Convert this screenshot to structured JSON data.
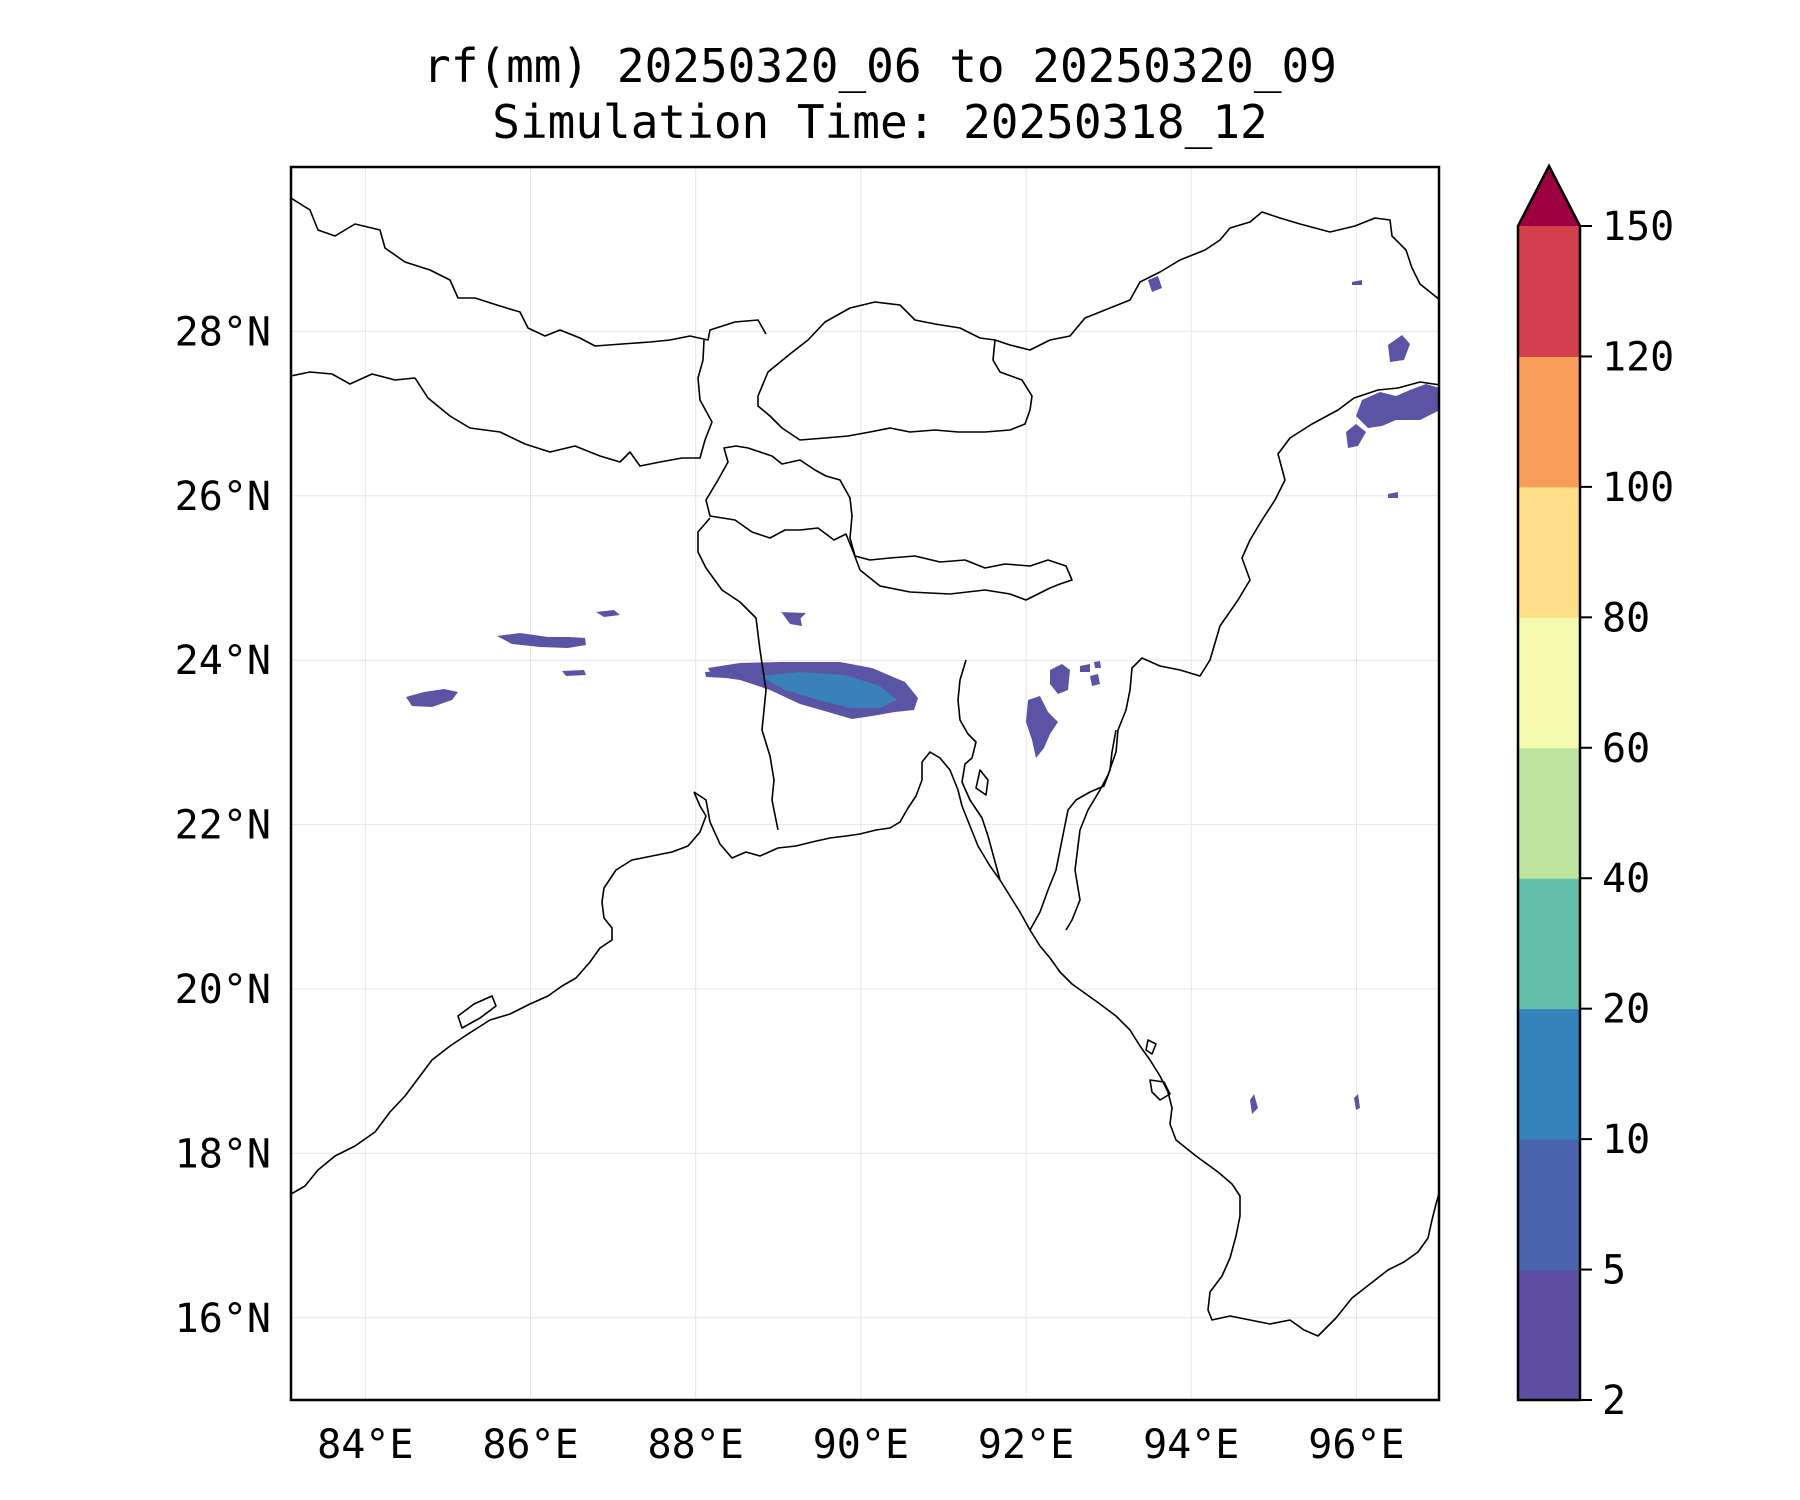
{
  "title": {
    "line1": "rf(mm) 20250320_06 to 20250320_09",
    "line2": "Simulation Time: 20250318_12"
  },
  "map": {
    "lon_range": [
      83.1,
      97.0
    ],
    "lat_range": [
      15.0,
      30.0
    ],
    "lon_ticks": [
      {
        "value": 84,
        "label": "84°E"
      },
      {
        "value": 86,
        "label": "86°E"
      },
      {
        "value": 88,
        "label": "88°E"
      },
      {
        "value": 90,
        "label": "90°E"
      },
      {
        "value": 92,
        "label": "92°E"
      },
      {
        "value": 94,
        "label": "94°E"
      },
      {
        "value": 96,
        "label": "96°E"
      }
    ],
    "lat_ticks": [
      {
        "value": 16,
        "label": "16°N"
      },
      {
        "value": 18,
        "label": "18°N"
      },
      {
        "value": 20,
        "label": "20°N"
      },
      {
        "value": 22,
        "label": "22°N"
      },
      {
        "value": 24,
        "label": "24°N"
      },
      {
        "value": 26,
        "label": "26°N"
      },
      {
        "value": 28,
        "label": "28°N"
      }
    ]
  },
  "colorbar": {
    "levels": [
      "2",
      "5",
      "10",
      "20",
      "40",
      "60",
      "80",
      "100",
      "120",
      "150"
    ],
    "colors": [
      "#5e4fa2",
      "#4a64ae",
      "#3682ba",
      "#63bfa9",
      "#bde5a0",
      "#f4fab0",
      "#fddf8a",
      "#f99e5a",
      "#d43f4e"
    ],
    "extend_color": "#9e0142"
  }
}
